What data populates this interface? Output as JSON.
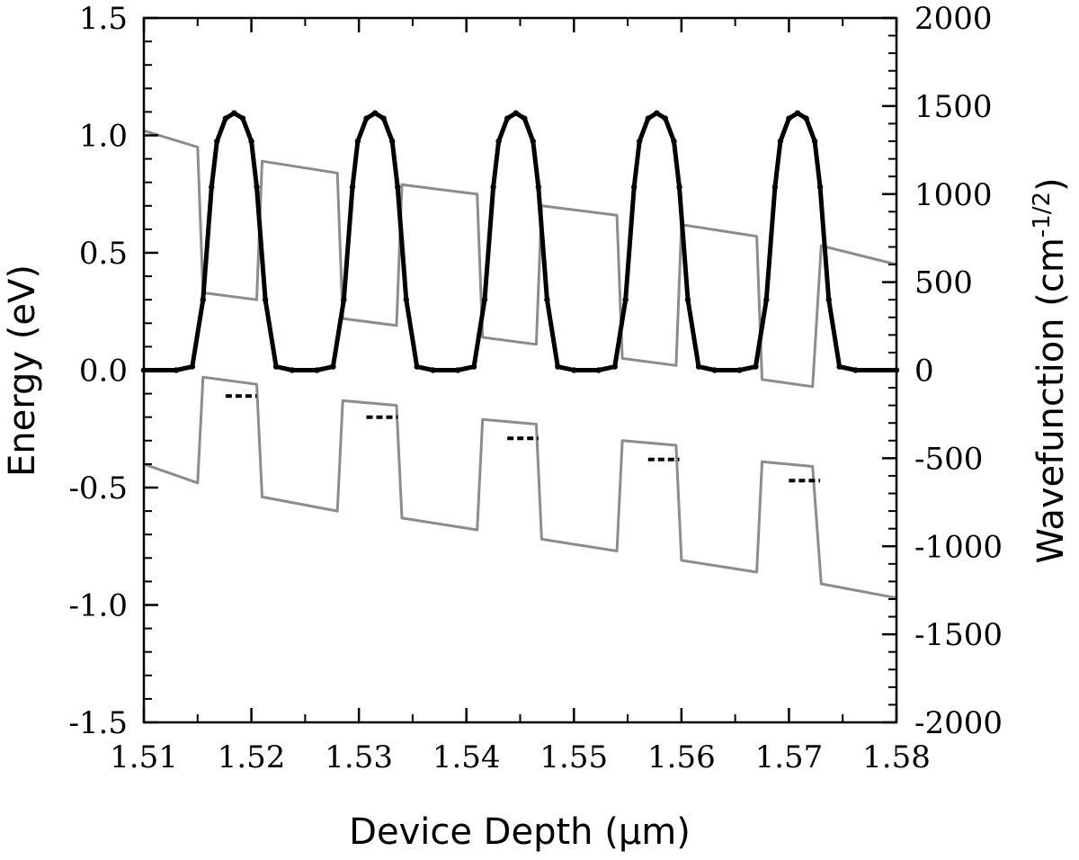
{
  "chart_data": {
    "type": "line",
    "title": "",
    "xlabel": "Device Depth (µm)",
    "ylabel_left": "Energy (eV)",
    "ylabel_right_main": "Wavefunction (cm",
    "ylabel_right_sup": "-1/2",
    "ylabel_right_close": ")",
    "xlim": [
      1.51,
      1.58
    ],
    "ylim_left": [
      -1.5,
      1.5
    ],
    "ylim_right": [
      -2000,
      2000
    ],
    "x_ticks": [
      1.51,
      1.52,
      1.53,
      1.54,
      1.55,
      1.56,
      1.57,
      1.58
    ],
    "x_tick_labels": [
      "1.51",
      "1.52",
      "1.53",
      "1.54",
      "1.55",
      "1.56",
      "1.57",
      "1.58"
    ],
    "y_left_ticks": [
      -1.5,
      -1.0,
      -0.5,
      0.0,
      0.5,
      1.0,
      1.5
    ],
    "y_left_tick_labels": [
      "-1.5",
      "-1.0",
      "-0.5",
      "0.0",
      "0.5",
      "1.0",
      "1.5"
    ],
    "y_right_ticks": [
      -2000,
      -1500,
      -1000,
      -500,
      0,
      500,
      1000,
      1500,
      2000
    ],
    "y_right_tick_labels": [
      "-2000",
      "-1500",
      "-1000",
      "-500",
      "0",
      "500",
      "1000",
      "1500",
      "2000"
    ],
    "grid": false,
    "colors": {
      "band": "#8c8c8c",
      "wavefunction": "#000000",
      "levels": "#000000"
    },
    "series": [
      {
        "axis": "left",
        "style": "band",
        "points": [
          [
            1.51,
            1.02
          ],
          [
            1.515,
            0.95
          ],
          [
            1.5155,
            0.33
          ],
          [
            1.5205,
            0.3
          ],
          [
            1.521,
            0.89
          ],
          [
            1.528,
            0.84
          ],
          [
            1.5285,
            0.22
          ],
          [
            1.5335,
            0.19
          ],
          [
            1.534,
            0.79
          ],
          [
            1.541,
            0.75
          ],
          [
            1.5415,
            0.14
          ],
          [
            1.5465,
            0.11
          ],
          [
            1.547,
            0.7
          ],
          [
            1.554,
            0.66
          ],
          [
            1.5545,
            0.05
          ],
          [
            1.5595,
            0.02
          ],
          [
            1.56,
            0.62
          ],
          [
            1.567,
            0.57
          ],
          [
            1.5675,
            -0.04
          ],
          [
            1.5722,
            -0.07
          ],
          [
            1.573,
            0.53
          ],
          [
            1.58,
            0.45
          ]
        ]
      },
      {
        "axis": "left",
        "style": "band",
        "points": [
          [
            1.51,
            -0.4
          ],
          [
            1.515,
            -0.48
          ],
          [
            1.5155,
            -0.03
          ],
          [
            1.5205,
            -0.06
          ],
          [
            1.521,
            -0.54
          ],
          [
            1.528,
            -0.6
          ],
          [
            1.5285,
            -0.13
          ],
          [
            1.5335,
            -0.15
          ],
          [
            1.534,
            -0.63
          ],
          [
            1.541,
            -0.68
          ],
          [
            1.5415,
            -0.21
          ],
          [
            1.5465,
            -0.23
          ],
          [
            1.547,
            -0.72
          ],
          [
            1.554,
            -0.77
          ],
          [
            1.5545,
            -0.3
          ],
          [
            1.5595,
            -0.32
          ],
          [
            1.56,
            -0.81
          ],
          [
            1.567,
            -0.86
          ],
          [
            1.5675,
            -0.39
          ],
          [
            1.5722,
            -0.41
          ],
          [
            1.573,
            -0.91
          ],
          [
            1.58,
            -0.97
          ]
        ]
      },
      {
        "axis": "right",
        "style": "wavefunction",
        "points": [
          [
            1.51,
            0
          ],
          [
            1.513,
            0
          ],
          [
            1.5145,
            20
          ],
          [
            1.5155,
            400
          ],
          [
            1.5163,
            1040
          ],
          [
            1.5168,
            1300
          ],
          [
            1.5176,
            1430
          ],
          [
            1.5184,
            1460
          ],
          [
            1.5192,
            1430
          ],
          [
            1.52,
            1300
          ],
          [
            1.5205,
            1040
          ],
          [
            1.5213,
            400
          ],
          [
            1.5223,
            20
          ],
          [
            1.5238,
            0
          ],
          [
            1.5261,
            0
          ],
          [
            1.5276,
            20
          ],
          [
            1.5286,
            400
          ],
          [
            1.5294,
            1040
          ],
          [
            1.5299,
            1300
          ],
          [
            1.5307,
            1430
          ],
          [
            1.5315,
            1460
          ],
          [
            1.5323,
            1430
          ],
          [
            1.5331,
            1300
          ],
          [
            1.5336,
            1040
          ],
          [
            1.5344,
            400
          ],
          [
            1.5354,
            20
          ],
          [
            1.5369,
            0
          ],
          [
            1.5392,
            0
          ],
          [
            1.5407,
            20
          ],
          [
            1.5417,
            400
          ],
          [
            1.5425,
            1040
          ],
          [
            1.543,
            1300
          ],
          [
            1.5438,
            1430
          ],
          [
            1.5446,
            1460
          ],
          [
            1.5454,
            1430
          ],
          [
            1.5462,
            1300
          ],
          [
            1.5467,
            1040
          ],
          [
            1.5475,
            400
          ],
          [
            1.5485,
            20
          ],
          [
            1.55,
            0
          ],
          [
            1.5523,
            0
          ],
          [
            1.5538,
            20
          ],
          [
            1.5548,
            400
          ],
          [
            1.5556,
            1040
          ],
          [
            1.5561,
            1300
          ],
          [
            1.5569,
            1430
          ],
          [
            1.5577,
            1460
          ],
          [
            1.5585,
            1430
          ],
          [
            1.5593,
            1300
          ],
          [
            1.5598,
            1040
          ],
          [
            1.5606,
            400
          ],
          [
            1.5616,
            20
          ],
          [
            1.5631,
            0
          ],
          [
            1.5654,
            0
          ],
          [
            1.5669,
            20
          ],
          [
            1.5679,
            400
          ],
          [
            1.5687,
            1040
          ],
          [
            1.5692,
            1300
          ],
          [
            1.57,
            1430
          ],
          [
            1.5708,
            1460
          ],
          [
            1.5716,
            1430
          ],
          [
            1.5724,
            1300
          ],
          [
            1.5729,
            1040
          ],
          [
            1.5737,
            400
          ],
          [
            1.5747,
            20
          ],
          [
            1.5762,
            0
          ],
          [
            1.58,
            0
          ]
        ]
      }
    ],
    "levels": [
      {
        "x": [
          1.5176,
          1.5205
        ],
        "y": -0.11
      },
      {
        "x": [
          1.5307,
          1.5336
        ],
        "y": -0.2
      },
      {
        "x": [
          1.5438,
          1.5467
        ],
        "y": -0.29
      },
      {
        "x": [
          1.5569,
          1.5598
        ],
        "y": -0.38
      },
      {
        "x": [
          1.57,
          1.5729
        ],
        "y": -0.47
      }
    ]
  }
}
